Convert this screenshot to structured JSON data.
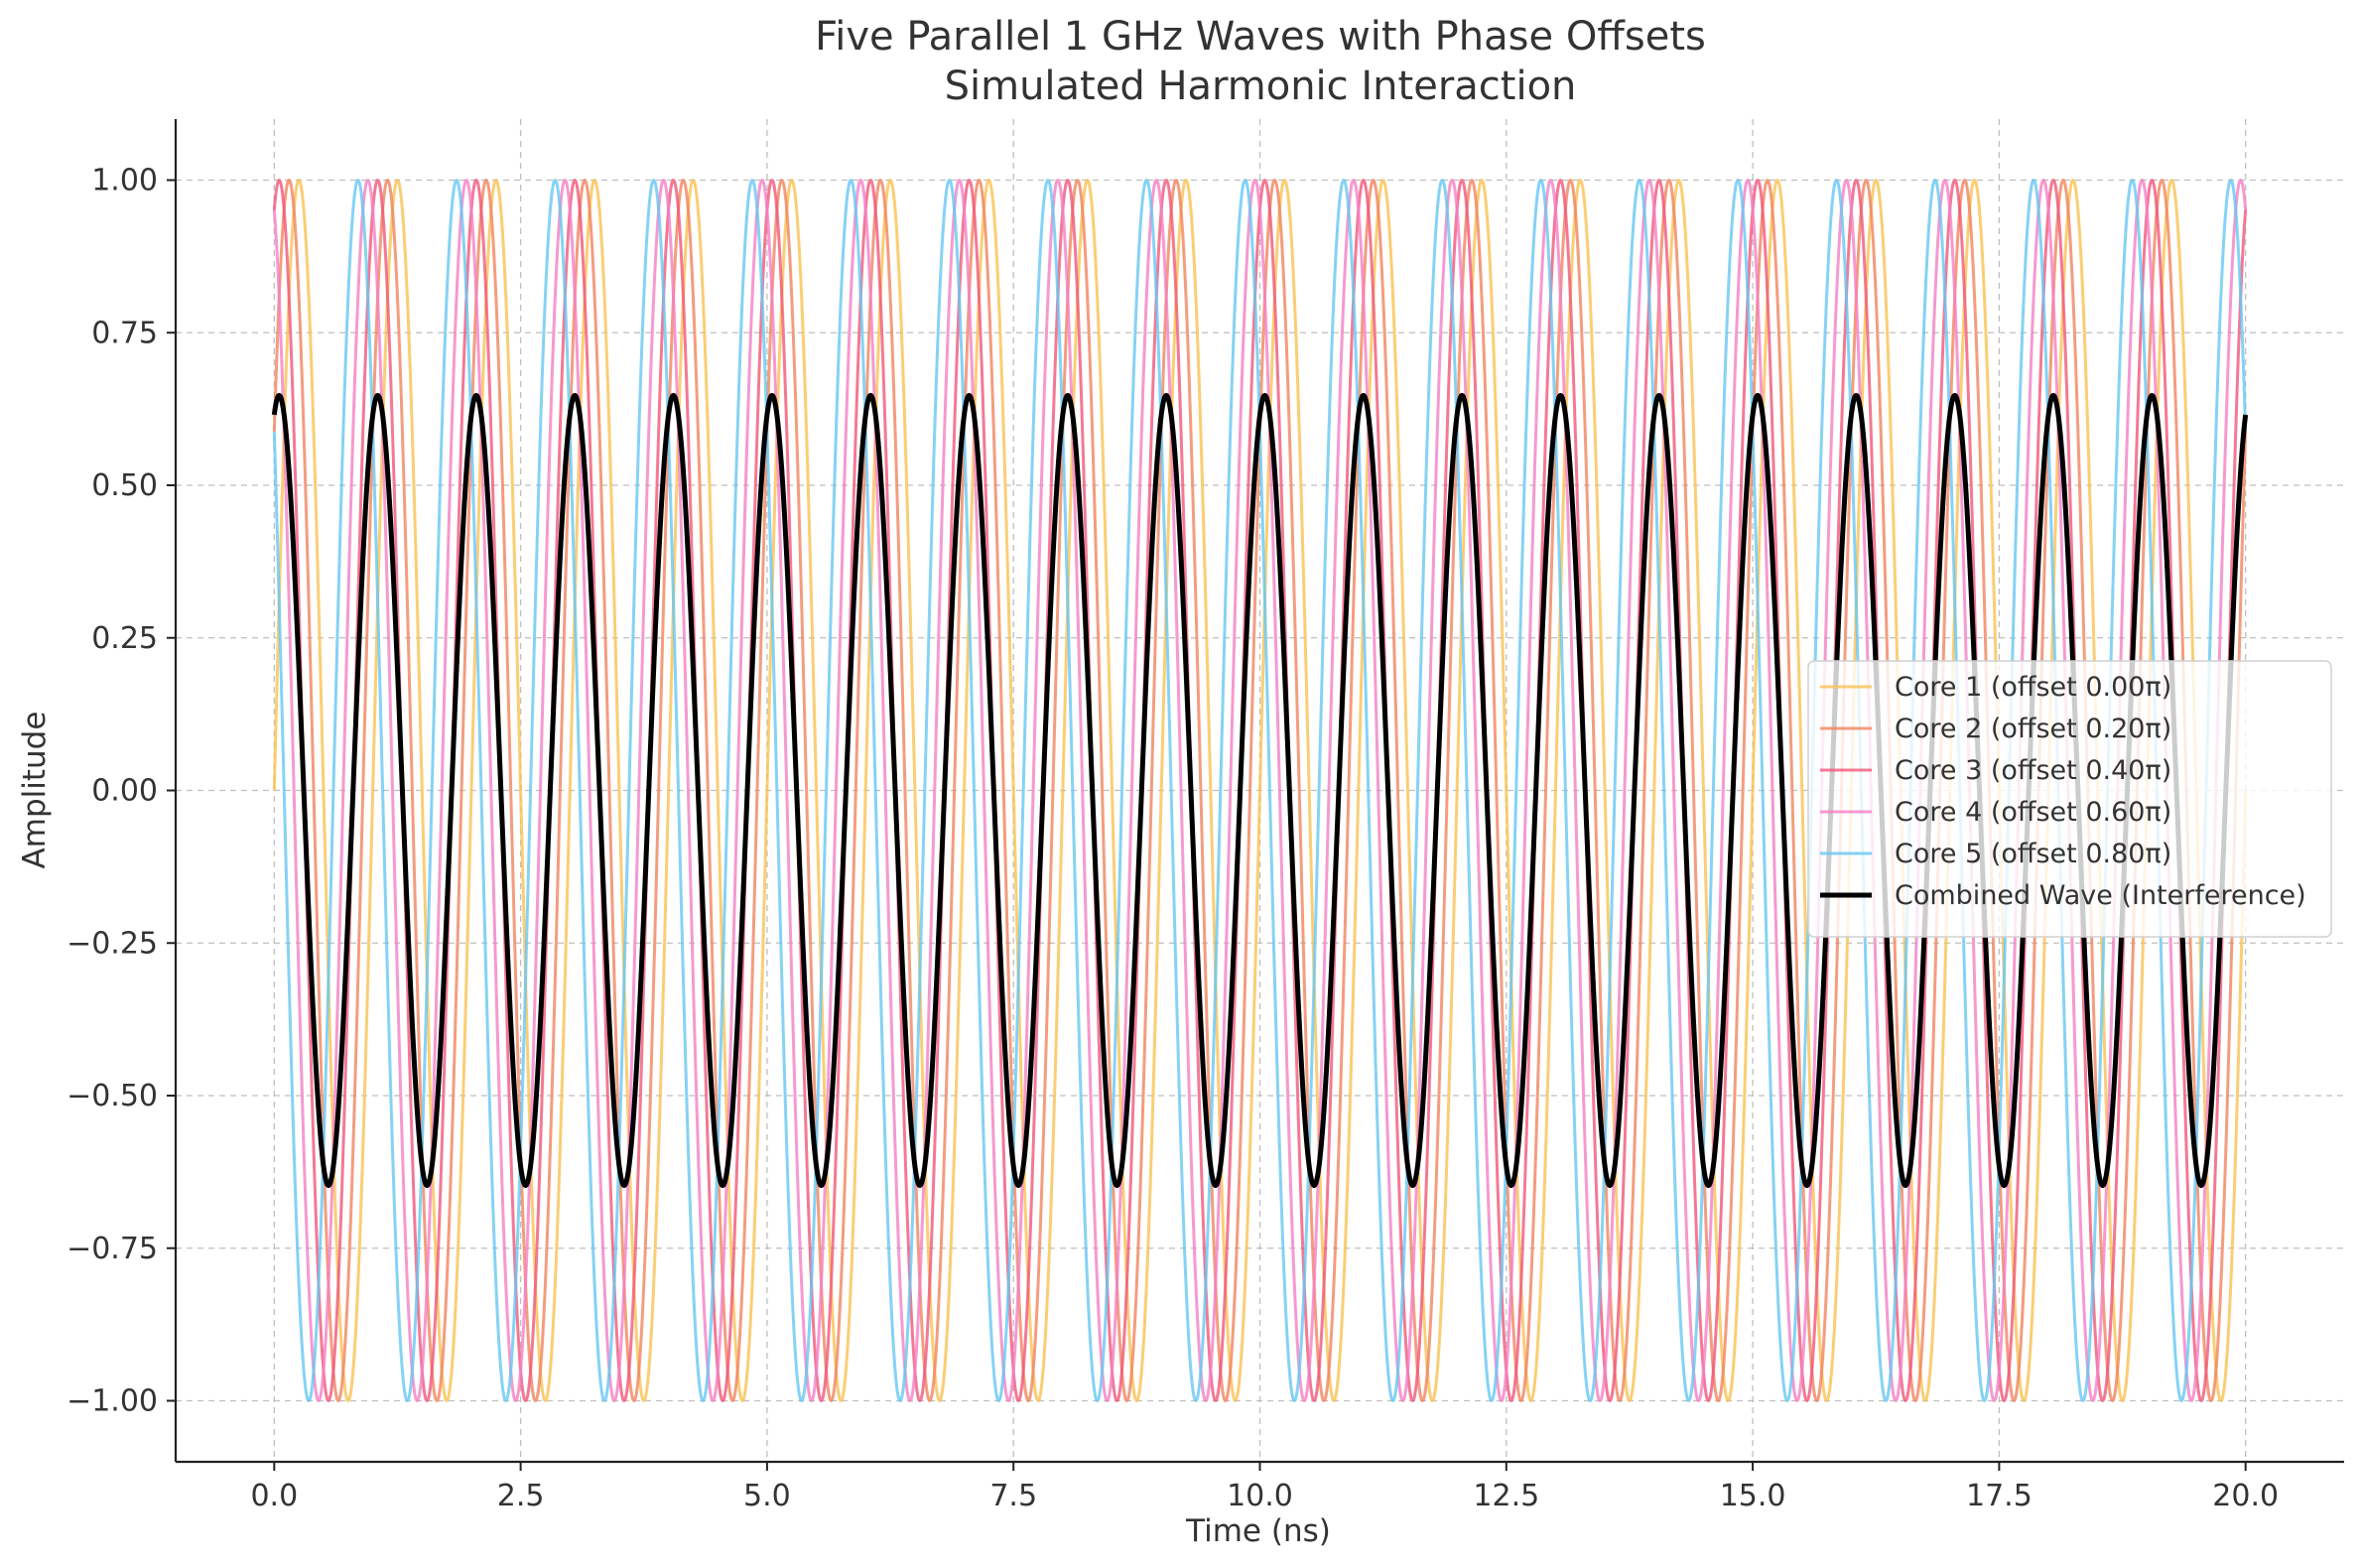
{
  "chart_data": {
    "type": "line",
    "title_line1": "Five Parallel 1 GHz Waves with Phase Offsets",
    "title_line2": "Simulated Harmonic Interaction",
    "xlabel": "Time (ns)",
    "ylabel": "Amplitude",
    "xlim": [
      -1.0,
      21.0
    ],
    "ylim": [
      -1.1,
      1.1
    ],
    "x_ticks": [
      0.0,
      2.5,
      5.0,
      7.5,
      10.0,
      12.5,
      15.0,
      17.5,
      20.0
    ],
    "x_tick_labels": [
      "0.0",
      "2.5",
      "5.0",
      "7.5",
      "10.0",
      "12.5",
      "15.0",
      "17.5",
      "20.0"
    ],
    "y_ticks": [
      -1.0,
      -0.75,
      -0.5,
      -0.25,
      0.0,
      0.25,
      0.5,
      0.75,
      1.0
    ],
    "y_tick_labels": [
      "−1.00",
      "−0.75",
      "−0.50",
      "−0.25",
      "0.00",
      "0.25",
      "0.50",
      "0.75",
      "1.00"
    ],
    "grid": true,
    "legend_position": "center-right",
    "frequency_ghz": 1,
    "t_range": [
      0,
      20
    ],
    "series": [
      {
        "name": "Core 1 (offset 0.00π)",
        "phase_offset_pi": 0.0,
        "amplitude": 1.0,
        "color": "#f9c253"
      },
      {
        "name": "Core 2 (offset 0.20π)",
        "phase_offset_pi": 0.2,
        "amplitude": 1.0,
        "color": "#f0845f"
      },
      {
        "name": "Core 3 (offset 0.40π)",
        "phase_offset_pi": 0.4,
        "amplitude": 1.0,
        "color": "#f0577a"
      },
      {
        "name": "Core 4 (offset 0.60π)",
        "phase_offset_pi": 0.6,
        "amplitude": 1.0,
        "color": "#f47fc4"
      },
      {
        "name": "Core 5 (offset 0.80π)",
        "phase_offset_pi": 0.8,
        "amplitude": 1.0,
        "color": "#66c7f4"
      },
      {
        "name": "Combined Wave (Interference)",
        "aggregate": "mean",
        "peak_amplitude": 0.647,
        "color": "#000000"
      }
    ]
  }
}
